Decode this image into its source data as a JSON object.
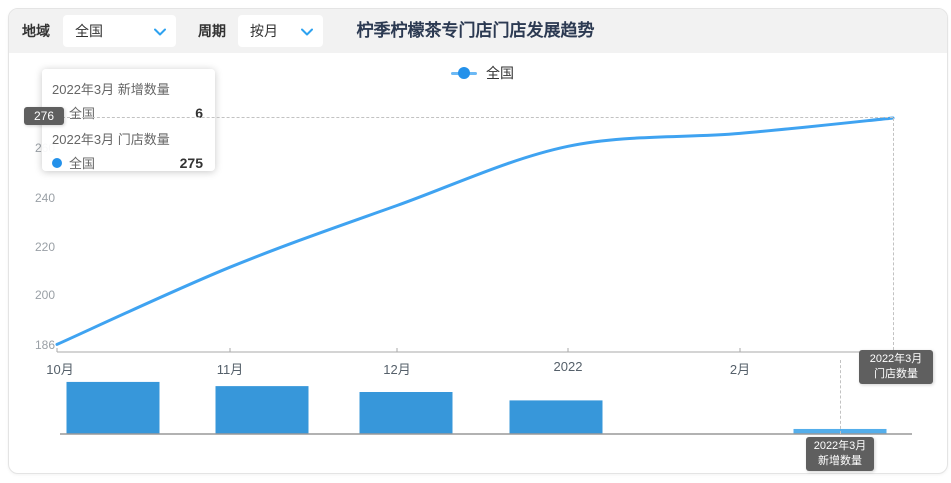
{
  "header": {
    "region_label": "地域",
    "region_value": "全国",
    "period_label": "周期",
    "period_value": "按月",
    "title": "柠季柠檬茶专门店门店发展趋势"
  },
  "legend": {
    "label": "全国",
    "color": "#2491ea"
  },
  "tooltip": {
    "sections": [
      {
        "title": "2022年3月 新增数量",
        "series": "全国",
        "value": "6"
      },
      {
        "title": "2022年3月 门店数量",
        "series": "全国",
        "value": "275"
      }
    ]
  },
  "axis_pointers": {
    "y_value": "276",
    "store_badge_line1": "2022年3月",
    "store_badge_line2": "门店数量",
    "new_badge_line1": "2022年3月",
    "new_badge_line2": "新增数量"
  },
  "colors": {
    "line": "#3fa3f1",
    "bar": "#3797da",
    "bar_highlight": "#54aeeb",
    "axis": "#aaaaaa",
    "bar_axis": "#999999"
  },
  "chart_data": [
    {
      "type": "line",
      "title": "柠季柠檬茶专门店门店发展趋势",
      "series": [
        {
          "name": "全国",
          "values": [
            187,
            217,
            241,
            264,
            269,
            275
          ]
        }
      ],
      "categories": [
        "10月",
        "11月",
        "12月",
        "2022",
        "2月",
        "2022年3月"
      ],
      "x_tick_labels": [
        "10月",
        "11月",
        "12月",
        "2022",
        "2月"
      ],
      "y_tick_labels": [
        "260",
        "240",
        "220",
        "200",
        "186"
      ],
      "ylim": [
        186,
        276
      ],
      "gridlines": false,
      "legend_position": "top-center",
      "hovered_point": {
        "category": "2022年3月",
        "value": 275
      }
    },
    {
      "type": "bar",
      "name": "新增数量",
      "categories": [
        "10月",
        "11月",
        "12月",
        "2022",
        "2月",
        "2022年3月"
      ],
      "values": [
        62,
        57,
        50,
        40,
        0,
        6
      ],
      "highlighted_index": 5,
      "hovered_point": {
        "category": "2022年3月",
        "value": 6
      }
    }
  ]
}
